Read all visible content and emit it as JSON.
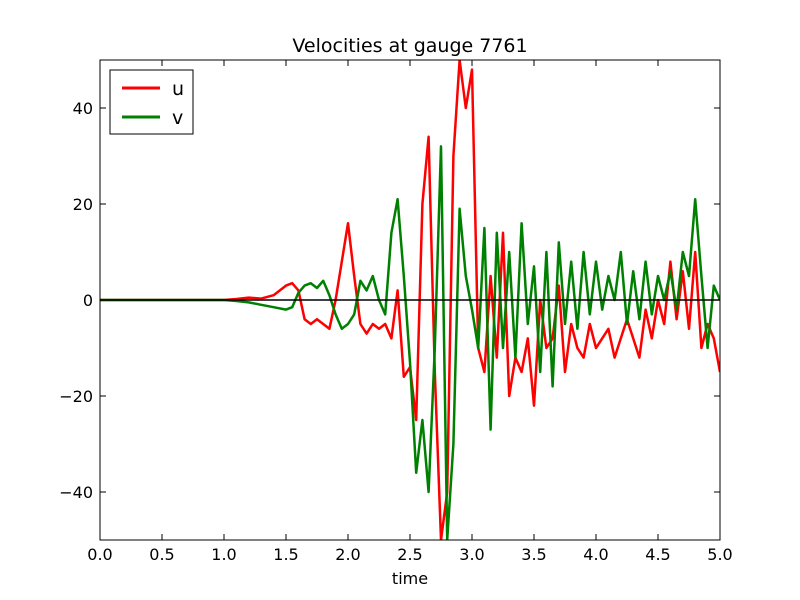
{
  "chart_data": {
    "type": "line",
    "title": "Velocities at gauge 7761",
    "xlabel": "time",
    "ylabel": "",
    "xlim": [
      0.0,
      5.0
    ],
    "ylim": [
      -50,
      50
    ],
    "xticks": [
      "0.0",
      "0.5",
      "1.0",
      "1.5",
      "2.0",
      "2.5",
      "3.0",
      "3.5",
      "4.0",
      "4.5",
      "5.0"
    ],
    "yticks": [
      "−40",
      "−20",
      "0",
      "20",
      "40"
    ],
    "ytick_values": [
      -40,
      -20,
      0,
      20,
      40
    ],
    "grid": false,
    "legend_position": "top-left",
    "zero_line": true,
    "colors": {
      "u": "#ff0000",
      "v": "#008000",
      "axis": "#000000"
    },
    "series": [
      {
        "name": "u",
        "color": "#ff0000",
        "x": [
          0.0,
          0.5,
          1.0,
          1.1,
          1.2,
          1.3,
          1.4,
          1.5,
          1.55,
          1.6,
          1.65,
          1.7,
          1.75,
          1.8,
          1.85,
          1.9,
          1.95,
          2.0,
          2.05,
          2.1,
          2.15,
          2.2,
          2.25,
          2.3,
          2.35,
          2.4,
          2.45,
          2.5,
          2.55,
          2.6,
          2.65,
          2.7,
          2.75,
          2.8,
          2.85,
          2.9,
          2.95,
          3.0,
          3.05,
          3.1,
          3.15,
          3.2,
          3.25,
          3.3,
          3.35,
          3.4,
          3.45,
          3.5,
          3.55,
          3.6,
          3.65,
          3.7,
          3.75,
          3.8,
          3.85,
          3.9,
          3.95,
          4.0,
          4.05,
          4.1,
          4.15,
          4.2,
          4.25,
          4.3,
          4.35,
          4.4,
          4.45,
          4.5,
          4.55,
          4.6,
          4.65,
          4.7,
          4.75,
          4.8,
          4.85,
          4.9,
          4.95,
          5.0
        ],
        "values": [
          0,
          0,
          0,
          0.2,
          0.5,
          0.3,
          1.0,
          3.0,
          3.5,
          2.0,
          -4.0,
          -5.0,
          -4.0,
          -5.0,
          -6.0,
          0,
          8.0,
          16.0,
          5.0,
          -5.0,
          -7.0,
          -5.0,
          -6.0,
          -5.0,
          -8.0,
          2.0,
          -16.0,
          -14.0,
          -25.0,
          20.0,
          34.0,
          -15.0,
          -50.0,
          -40.0,
          30.0,
          50.0,
          40.0,
          48.0,
          -10.0,
          -15.0,
          5.0,
          -12.0,
          14.0,
          -20.0,
          -12.0,
          -15.0,
          -8.0,
          -22.0,
          0,
          -10.0,
          -8.0,
          3.0,
          -15.0,
          -5.0,
          -10.0,
          -12.0,
          -5.0,
          -10.0,
          -8.0,
          -6.0,
          -12.0,
          -8.0,
          -4.0,
          -8.0,
          -12.0,
          -2.0,
          -8.0,
          0,
          -5.0,
          8.0,
          -4.0,
          6.0,
          -6.0,
          10.0,
          -10.0,
          -5.0,
          -8.0,
          -15.0
        ]
      },
      {
        "name": "v",
        "color": "#008000",
        "x": [
          0.0,
          0.5,
          1.0,
          1.1,
          1.2,
          1.3,
          1.4,
          1.5,
          1.55,
          1.6,
          1.65,
          1.7,
          1.75,
          1.8,
          1.85,
          1.9,
          1.95,
          2.0,
          2.05,
          2.1,
          2.15,
          2.2,
          2.25,
          2.3,
          2.35,
          2.4,
          2.45,
          2.5,
          2.55,
          2.6,
          2.65,
          2.7,
          2.75,
          2.8,
          2.85,
          2.9,
          2.95,
          3.0,
          3.05,
          3.1,
          3.15,
          3.2,
          3.25,
          3.3,
          3.35,
          3.4,
          3.45,
          3.5,
          3.55,
          3.6,
          3.65,
          3.7,
          3.75,
          3.8,
          3.85,
          3.9,
          3.95,
          4.0,
          4.05,
          4.1,
          4.15,
          4.2,
          4.25,
          4.3,
          4.35,
          4.4,
          4.45,
          4.5,
          4.55,
          4.6,
          4.65,
          4.7,
          4.75,
          4.8,
          4.85,
          4.9,
          4.95,
          5.0
        ],
        "values": [
          0,
          0,
          0,
          -0.2,
          -0.5,
          -1.0,
          -1.5,
          -2.0,
          -1.5,
          1.5,
          3.0,
          3.5,
          2.5,
          4.0,
          1.0,
          -3.0,
          -6.0,
          -5.0,
          -3.0,
          4.0,
          2.0,
          5.0,
          0,
          -3.0,
          14.0,
          21.0,
          5.0,
          -13.0,
          -36.0,
          -25.0,
          -40.0,
          -10.0,
          32.0,
          -50.0,
          -30.0,
          19.0,
          5.0,
          -2.0,
          -10.0,
          15.0,
          -27.0,
          14.0,
          -10.0,
          10.0,
          -12.0,
          16.0,
          -5.0,
          7.0,
          -15.0,
          10.0,
          -18.0,
          12.0,
          -5.0,
          8.0,
          -6.0,
          10.0,
          -3.0,
          8.0,
          -2.0,
          5.0,
          0,
          10.0,
          -5.0,
          6.0,
          -4.0,
          8.0,
          -3.0,
          5.0,
          0,
          6.0,
          -2.0,
          10.0,
          5.0,
          21.0,
          5.0,
          -10.0,
          3.0,
          0
        ]
      }
    ]
  }
}
